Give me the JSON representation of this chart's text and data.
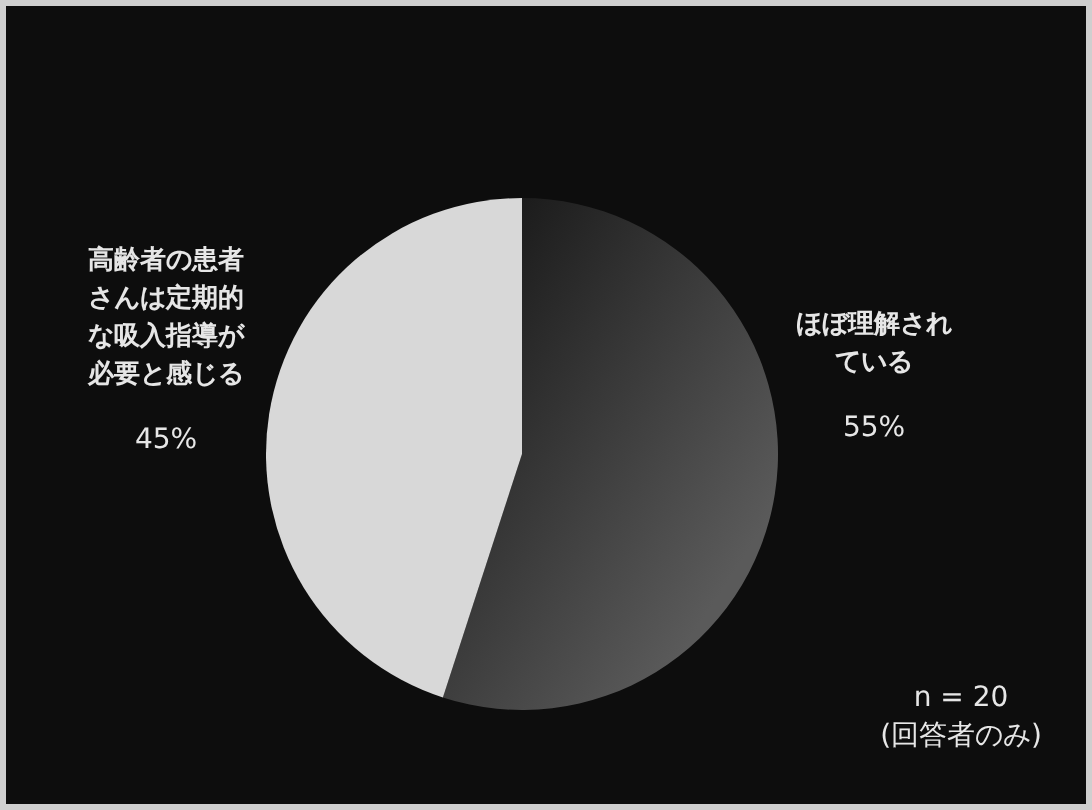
{
  "chart_data": {
    "type": "pie",
    "categories": [
      "ほぼ理解されている",
      "高齢者の患者さんは定期的な吸入指導が必要と感じる"
    ],
    "values": [
      55,
      45
    ],
    "value_labels": [
      "55%",
      "45%"
    ],
    "colors": [
      "#5a5a5a",
      "#d8d8d8"
    ],
    "annotations": [
      "n = 20",
      "(回答者のみ)"
    ]
  }
}
